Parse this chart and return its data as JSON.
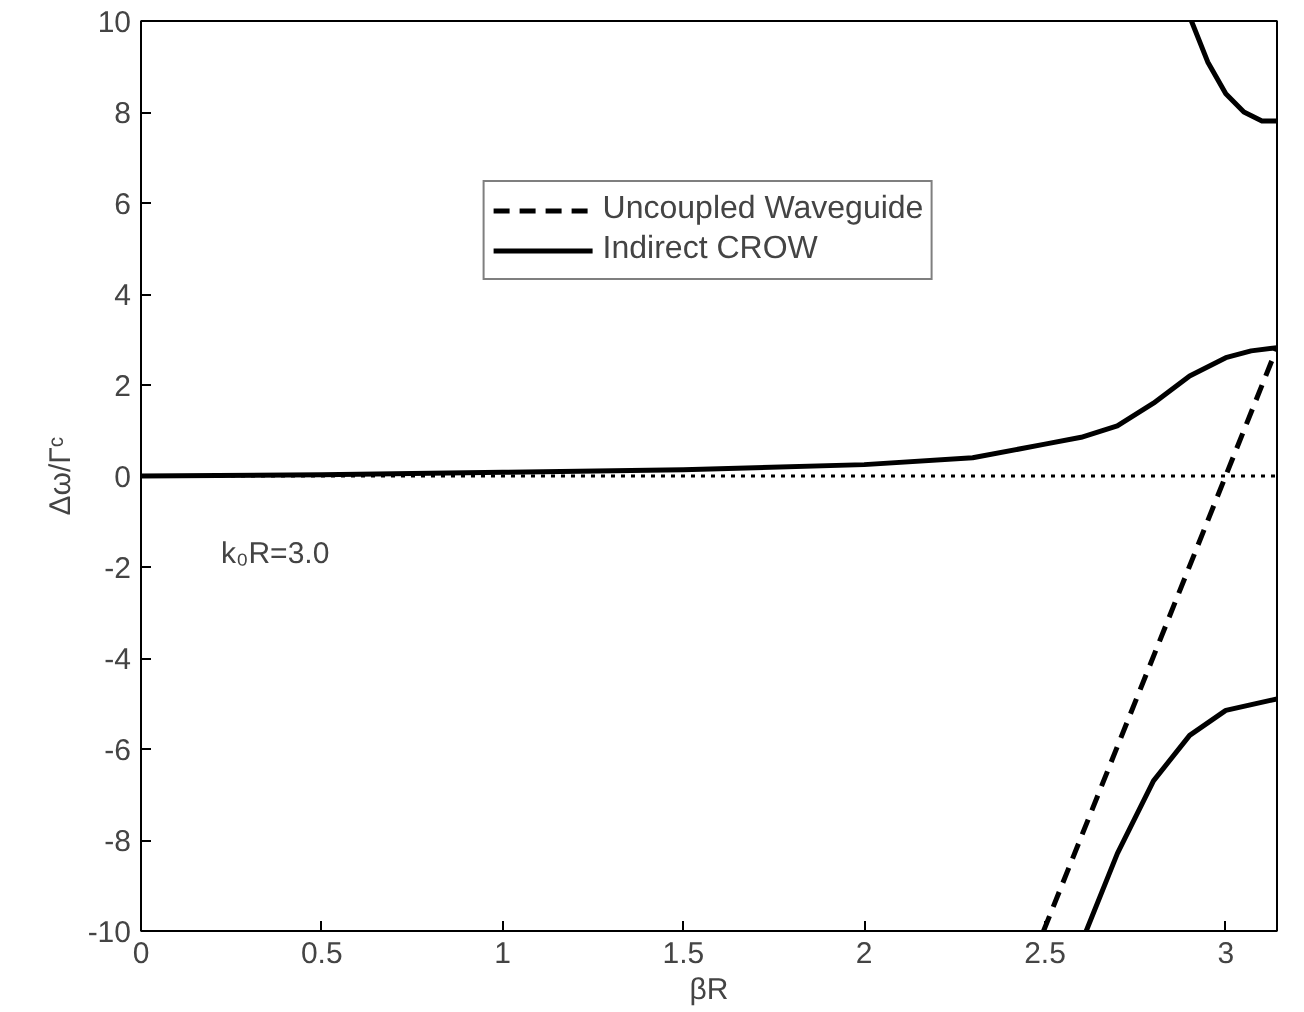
{
  "chart_data": {
    "type": "line",
    "xlabel": "βR",
    "ylabel": "Δω/Γᶜ",
    "xlim": [
      0,
      3.1416
    ],
    "ylim": [
      -10,
      10
    ],
    "xticks": [
      0,
      0.5,
      1,
      1.5,
      2,
      2.5,
      3
    ],
    "yticks": [
      -10,
      -8,
      -6,
      -4,
      -2,
      0,
      2,
      4,
      6,
      8,
      10
    ],
    "grid": false,
    "legend": "top",
    "marker": "none",
    "series": [
      {
        "name": "Uncoupled Waveguide",
        "color": "#000000",
        "line_style": "dashed",
        "x": [
          2.496,
          3.1416
        ],
        "values": [
          -10,
          2.82
        ]
      },
      {
        "name": "Indirect CROW",
        "color": "#000000",
        "line_style": "solid",
        "x": [
          0,
          0.5,
          1.0,
          1.5,
          2.0,
          2.3,
          2.5,
          2.6,
          2.7,
          2.8,
          2.9,
          3.0,
          3.07,
          3.1416
        ],
        "values": [
          0,
          0.03,
          0.08,
          0.14,
          0.25,
          0.4,
          0.7,
          0.85,
          1.1,
          1.6,
          2.2,
          2.6,
          2.75,
          2.82
        ]
      },
      {
        "color": "#000000",
        "line_style": "solid",
        "x": [
          2.905,
          2.95,
          3.0,
          3.05,
          3.1,
          3.1416
        ],
        "values": [
          10,
          9.1,
          8.4,
          8.0,
          7.8,
          7.8
        ]
      },
      {
        "color": "#000000",
        "line_style": "solid",
        "x": [
          2.614,
          2.7,
          2.8,
          2.9,
          3.0,
          3.1416
        ],
        "values": [
          -10,
          -8.3,
          -6.7,
          -5.7,
          -5.15,
          -4.9
        ]
      }
    ],
    "ref_lines": [
      {
        "axis": "y",
        "value": 0,
        "color": "#000000",
        "line_style": "dotted"
      }
    ],
    "annotations": [
      "k₀R=3.0"
    ]
  }
}
